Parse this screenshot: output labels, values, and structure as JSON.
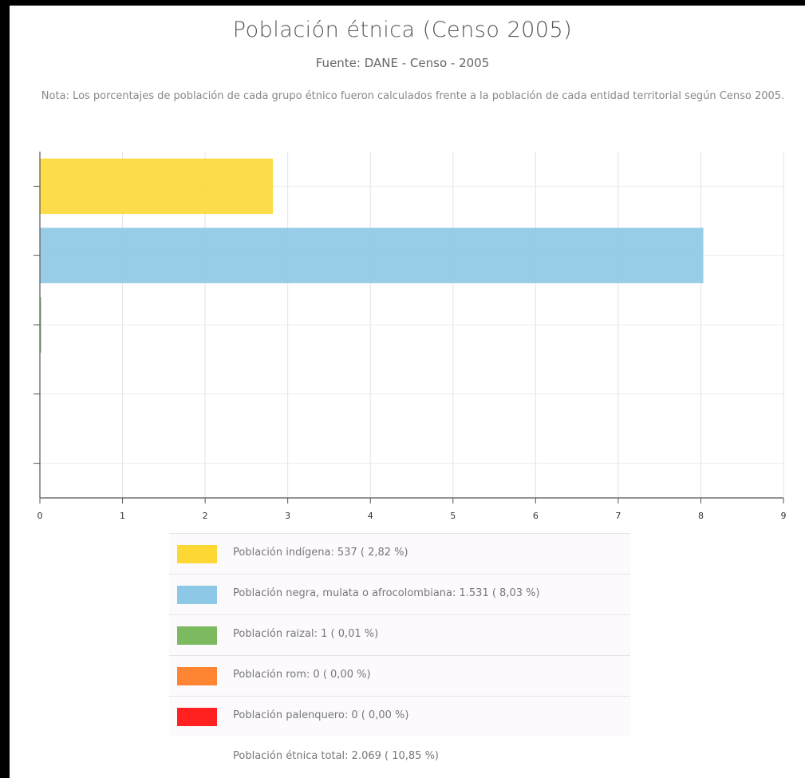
{
  "header": {
    "title": "Población étnica (Censo 2005)",
    "subtitle": "Fuente: DANE - Censo - 2005",
    "note": "Nota: Los porcentajes de población de cada grupo étnico fueron calculados frente a la población de cada entidad territorial según Censo 2005."
  },
  "chart_data": {
    "type": "bar",
    "orientation": "horizontal",
    "categories": [
      "Población indígena",
      "Población negra, mulata o afrocolombiana",
      "Población raizal",
      "Población rom",
      "Población palenquero"
    ],
    "values": [
      2.82,
      8.03,
      0.01,
      0,
      0
    ],
    "colors": [
      "#FDD835",
      "#8DC8E6",
      "#7CB95F",
      "#FF8533",
      "#FF2020"
    ],
    "xlim": [
      0,
      9
    ],
    "xticks": [
      "0",
      "1",
      "2",
      "3",
      "4",
      "5",
      "6",
      "7",
      "8",
      "9"
    ],
    "grid": true,
    "legend_position": "bottom"
  },
  "legend": {
    "items": [
      {
        "text": "Población indígena:  537 ( 2,82 %)",
        "color": "#FDD835"
      },
      {
        "text": "Población negra, mulata o afrocolombiana:  1.531 ( 8,03 %)",
        "color": "#8DC8E6"
      },
      {
        "text": "Población raizal:  1 ( 0,01 %)",
        "color": "#7CB95F"
      },
      {
        "text": "Población rom:  0 ( 0,00 %)",
        "color": "#FF8533"
      },
      {
        "text": "Población palenquero:  0 ( 0,00 %)",
        "color": "#FF2020"
      }
    ],
    "total": "Población étnica total:  2.069 ( 10,85 %)"
  }
}
